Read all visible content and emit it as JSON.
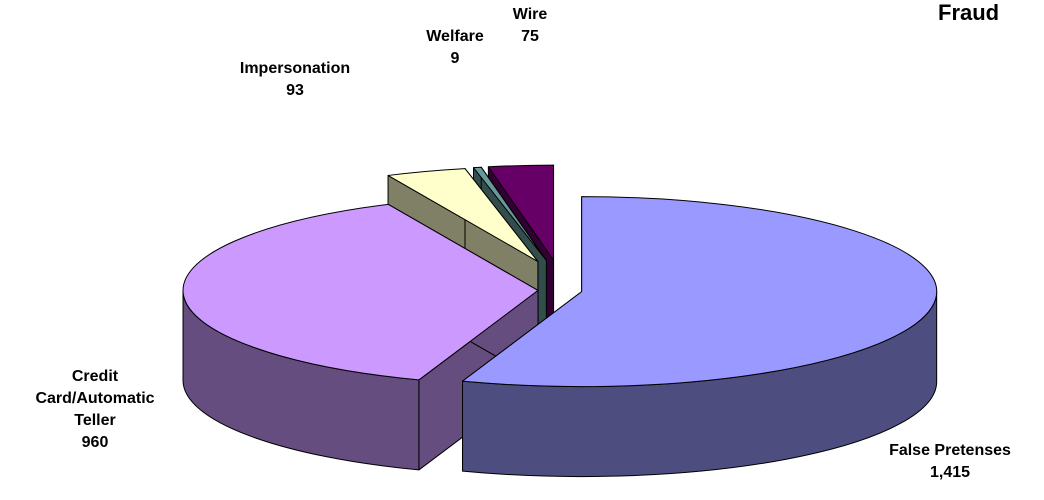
{
  "chart_data": {
    "type": "pie3d",
    "title": "Fraud",
    "categories": [
      "False Pretenses",
      "Credit Card/Automatic Teller",
      "Impersonation",
      "Welfare",
      "Wire"
    ],
    "values": [
      1415,
      960,
      93,
      9,
      75
    ],
    "value_labels": [
      "1,415",
      "960",
      "93",
      "9",
      "75"
    ],
    "colors": [
      "#9999ff",
      "#cc99ff",
      "#ffffcc",
      "#669999",
      "#660066"
    ]
  }
}
